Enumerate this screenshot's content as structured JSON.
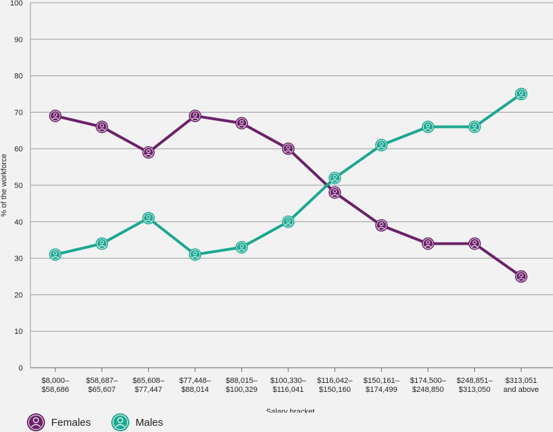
{
  "chart_data": {
    "type": "line",
    "categories": [
      [
        "$8,000–",
        "$58,686"
      ],
      [
        "$58,687–",
        "$65,607"
      ],
      [
        "$65,608–",
        "$77,447"
      ],
      [
        "$77,448–",
        "$88,014"
      ],
      [
        "$88,015–",
        "$100,329"
      ],
      [
        "$100,330–",
        "$116,041"
      ],
      [
        "$116,042–",
        "$150,160"
      ],
      [
        "$150,161–",
        "$174,499"
      ],
      [
        "$174,500–",
        "$248,850"
      ],
      [
        "$248,851–",
        "$313,050"
      ],
      [
        "$313,051",
        "and above"
      ]
    ],
    "series": [
      {
        "name": "Females",
        "color": "#6b2169",
        "values": [
          69,
          66,
          59,
          69,
          67,
          60,
          48,
          39,
          34,
          34,
          25
        ]
      },
      {
        "name": "Males",
        "color": "#1aa891",
        "values": [
          31,
          34,
          41,
          31,
          33,
          40,
          52,
          61,
          66,
          66,
          75
        ]
      }
    ],
    "xlabel": "Salary bracket",
    "ylabel": "% of the workforce",
    "ylim": [
      0,
      100
    ],
    "yticks": [
      0,
      10,
      20,
      30,
      40,
      50,
      60,
      70,
      80,
      90,
      100
    ],
    "grid": true,
    "legend_position": "bottom-left"
  },
  "legend": {
    "females_label": "Females",
    "males_label": "Males",
    "icon": "person-icon"
  }
}
